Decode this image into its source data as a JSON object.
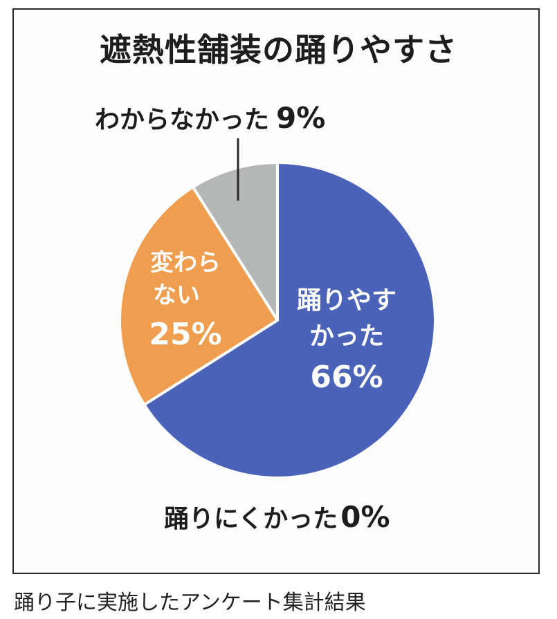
{
  "chart_data": {
    "type": "pie",
    "title": "遮熱性舗装の踊りやすさ",
    "slices": [
      {
        "label_lines": [
          "踊りやす",
          "かった"
        ],
        "value_text": "66%",
        "value": 66,
        "color": "#4a62b8",
        "label_color": "#ffffff"
      },
      {
        "label_lines": [
          "踊りにくかった"
        ],
        "value_text": "0%",
        "value": 0,
        "color": "#4a62b8",
        "label_color": "#1d1d1d"
      },
      {
        "label_lines": [
          "変わら",
          "ない"
        ],
        "value_text": "25%",
        "value": 25,
        "color": "#ef9d4e",
        "label_color": "#ffffff"
      },
      {
        "label_lines": [
          "わからなかった"
        ],
        "value_text": "9%",
        "value": 9,
        "color": "#b5b6b6",
        "label_color": "#1d1d1d"
      }
    ]
  },
  "caption": "踊り子に実施したアンケート集計結果"
}
